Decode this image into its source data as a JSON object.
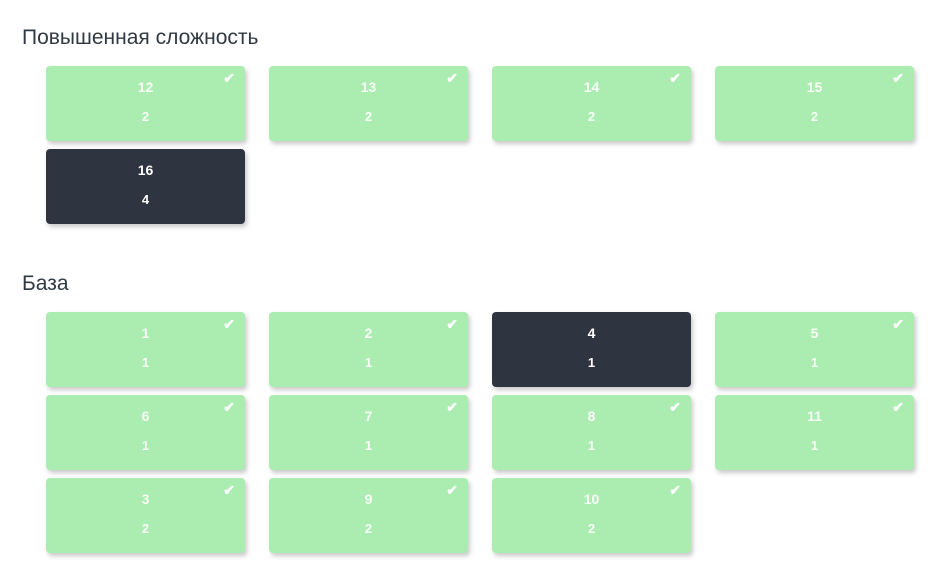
{
  "colors": {
    "background": "#ffffff",
    "card_done": "#abedb0",
    "card_active": "#2e3440",
    "title_text": "#313a43",
    "card_text": "#ffffff"
  },
  "icons": {
    "check": "✔"
  },
  "sections": [
    {
      "title": "Повышенная сложность",
      "cards": [
        {
          "number": "12",
          "count": "2",
          "state": "done"
        },
        {
          "number": "13",
          "count": "2",
          "state": "done"
        },
        {
          "number": "14",
          "count": "2",
          "state": "done"
        },
        {
          "number": "15",
          "count": "2",
          "state": "done"
        },
        {
          "number": "16",
          "count": "4",
          "state": "active"
        }
      ]
    },
    {
      "title": "База",
      "cards": [
        {
          "number": "1",
          "count": "1",
          "state": "done"
        },
        {
          "number": "2",
          "count": "1",
          "state": "done"
        },
        {
          "number": "4",
          "count": "1",
          "state": "active"
        },
        {
          "number": "5",
          "count": "1",
          "state": "done"
        },
        {
          "number": "6",
          "count": "1",
          "state": "done"
        },
        {
          "number": "7",
          "count": "1",
          "state": "done"
        },
        {
          "number": "8",
          "count": "1",
          "state": "done"
        },
        {
          "number": "11",
          "count": "1",
          "state": "done"
        },
        {
          "number": "3",
          "count": "2",
          "state": "done"
        },
        {
          "number": "9",
          "count": "2",
          "state": "done"
        },
        {
          "number": "10",
          "count": "2",
          "state": "done"
        }
      ]
    }
  ]
}
